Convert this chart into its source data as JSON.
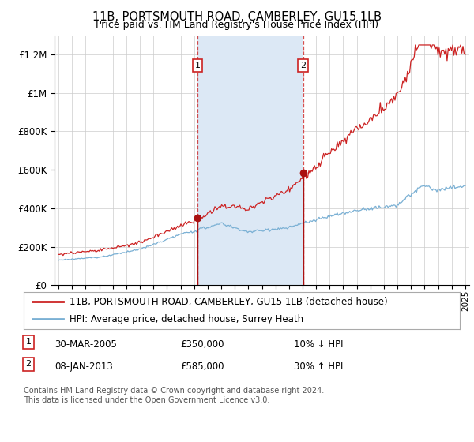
{
  "title": "11B, PORTSMOUTH ROAD, CAMBERLEY, GU15 1LB",
  "subtitle": "Price paid vs. HM Land Registry's House Price Index (HPI)",
  "legend_line1": "11B, PORTSMOUTH ROAD, CAMBERLEY, GU15 1LB (detached house)",
  "legend_line2": "HPI: Average price, detached house, Surrey Heath",
  "transaction1_date": "30-MAR-2005",
  "transaction1_price": "£350,000",
  "transaction1_pct": "10% ↓ HPI",
  "transaction2_date": "08-JAN-2013",
  "transaction2_price": "£585,000",
  "transaction2_pct": "30% ↑ HPI",
  "footnote": "Contains HM Land Registry data © Crown copyright and database right 2024.\nThis data is licensed under the Open Government Licence v3.0.",
  "hpi_color": "#7ab0d4",
  "price_color": "#cc2222",
  "shade_color": "#dce8f5",
  "marker_color": "#aa1111",
  "ylim_min": 0,
  "ylim_max": 1300000,
  "transaction1_year": 2005.25,
  "transaction2_year": 2013.05,
  "transaction1_value": 350000,
  "transaction2_value": 585000
}
